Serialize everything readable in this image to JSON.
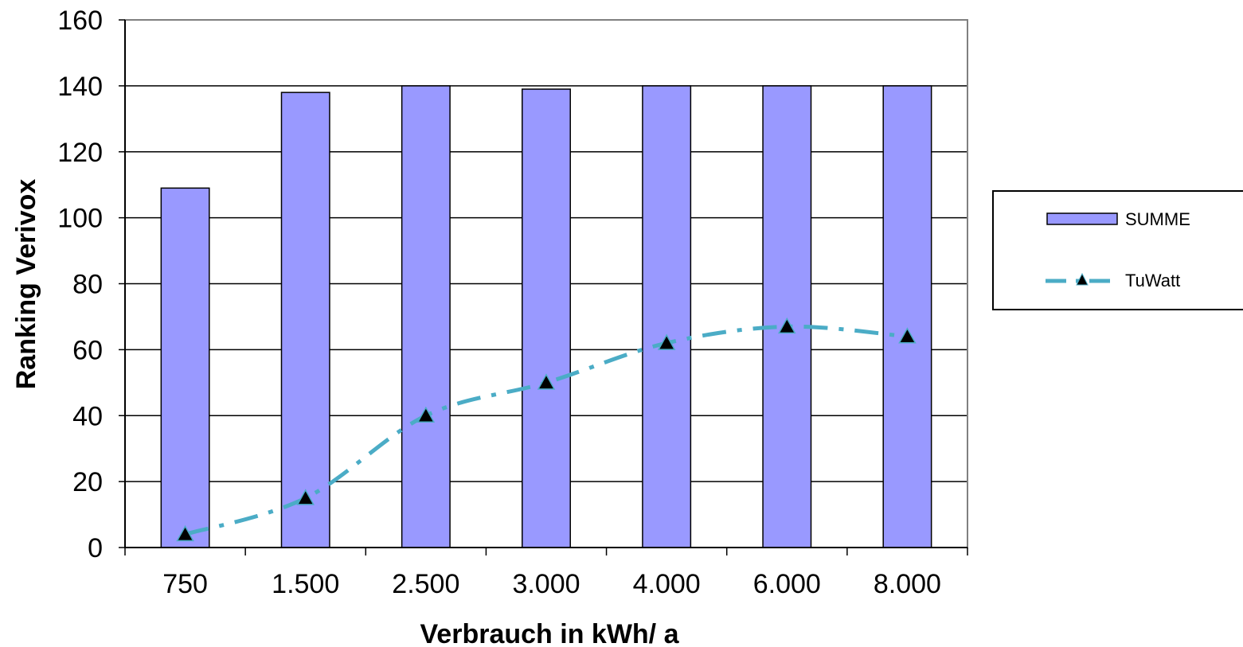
{
  "chart_data": {
    "type": "bar",
    "categories": [
      "750",
      "1.500",
      "2.500",
      "3.000",
      "4.000",
      "6.000",
      "8.000"
    ],
    "series": [
      {
        "name": "SUMME",
        "type": "bar",
        "values": [
          109,
          138,
          140,
          139,
          140,
          140,
          140
        ],
        "color": "#9999ff"
      },
      {
        "name": "TuWatt",
        "type": "line",
        "values": [
          4,
          15,
          40,
          50,
          62,
          67,
          64
        ],
        "color": "#4bacc6",
        "marker": "triangle",
        "line_style": "dash-dot"
      }
    ],
    "xlabel": "Verbrauch in kWh/ a",
    "ylabel": "Ranking Verivox",
    "ylim": [
      0,
      160
    ],
    "yticks": [
      0,
      20,
      40,
      60,
      80,
      100,
      120,
      140,
      160
    ],
    "grid": true,
    "legend_position": "right"
  }
}
